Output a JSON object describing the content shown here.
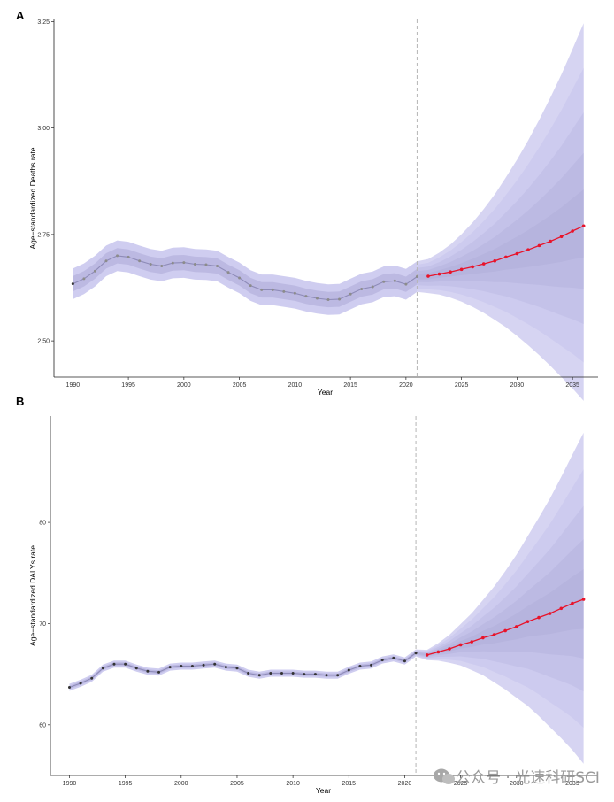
{
  "chart_data": [
    {
      "panel_label": "A",
      "type": "line",
      "xlabel": "Year",
      "ylabel": "Age−standardized Deaths rate",
      "xlim": [
        1988.3,
        2037.3
      ],
      "ylim": [
        2.415,
        3.255
      ],
      "xticks": [
        "1990",
        "1995",
        "2000",
        "2005",
        "2010",
        "2015",
        "2020",
        "2025",
        "2030",
        "2035"
      ],
      "yticks": [
        "2.50",
        "2.75",
        "3.00",
        "3.25"
      ],
      "cutoff_year": 2021,
      "observed": {
        "x": [
          1990,
          1991,
          1992,
          1993,
          1994,
          1995,
          1996,
          1997,
          1998,
          1999,
          2000,
          2001,
          2002,
          2003,
          2004,
          2005,
          2006,
          2007,
          2008,
          2009,
          2010,
          2011,
          2012,
          2013,
          2014,
          2015,
          2016,
          2017,
          2018,
          2019,
          2020,
          2021
        ],
        "y": [
          2.634,
          2.646,
          2.664,
          2.688,
          2.7,
          2.697,
          2.688,
          2.68,
          2.676,
          2.683,
          2.684,
          2.68,
          2.679,
          2.676,
          2.661,
          2.648,
          2.63,
          2.62,
          2.62,
          2.616,
          2.612,
          2.605,
          2.6,
          2.597,
          2.598,
          2.61,
          2.622,
          2.627,
          2.639,
          2.641,
          2.633,
          2.651
        ],
        "band_width": 0.036
      },
      "projection": {
        "x": [
          2022,
          2023,
          2024,
          2025,
          2026,
          2027,
          2028,
          2029,
          2030,
          2031,
          2032,
          2033,
          2034,
          2035,
          2036
        ],
        "y": [
          2.652,
          2.657,
          2.662,
          2.668,
          2.674,
          2.681,
          2.688,
          2.697,
          2.705,
          2.714,
          2.724,
          2.734,
          2.745,
          2.758,
          2.77
        ],
        "upper_outer_end": 3.21,
        "lower_outer_end": 2.395
      }
    },
    {
      "panel_label": "B",
      "type": "line",
      "xlabel": "Year",
      "ylabel": "Age−standardized DALYs rate",
      "xlim": [
        1988.3,
        2037.3
      ],
      "ylim": [
        55.0,
        90.5
      ],
      "xticks": [
        "1990",
        "1995",
        "2000",
        "2005",
        "2010",
        "2015",
        "2020",
        "2025",
        "2030",
        "2035"
      ],
      "yticks": [
        "60",
        "70",
        "80"
      ],
      "cutoff_year": 2021,
      "observed": {
        "x": [
          1990,
          1991,
          1992,
          1993,
          1994,
          1995,
          1996,
          1997,
          1998,
          1999,
          2000,
          2001,
          2002,
          2003,
          2004,
          2005,
          2006,
          2007,
          2008,
          2009,
          2010,
          2011,
          2012,
          2013,
          2014,
          2015,
          2016,
          2017,
          2018,
          2019,
          2020,
          2021
        ],
        "y": [
          63.7,
          64.1,
          64.6,
          65.6,
          66.0,
          66.0,
          65.6,
          65.3,
          65.2,
          65.7,
          65.8,
          65.8,
          65.9,
          66.0,
          65.7,
          65.6,
          65.1,
          64.9,
          65.1,
          65.1,
          65.1,
          65.0,
          65.0,
          64.9,
          64.9,
          65.4,
          65.8,
          65.9,
          66.4,
          66.6,
          66.3,
          67.1
        ],
        "band_width": 0.35
      },
      "projection": {
        "x": [
          2022,
          2023,
          2024,
          2025,
          2026,
          2027,
          2028,
          2029,
          2030,
          2031,
          2032,
          2033,
          2034,
          2035,
          2036
        ],
        "y": [
          66.9,
          67.2,
          67.5,
          67.9,
          68.2,
          68.6,
          68.9,
          69.3,
          69.7,
          70.2,
          70.6,
          71.0,
          71.5,
          72.0,
          72.4
        ],
        "upper_outer_end": 88.5,
        "lower_outer_end": 56.5
      }
    }
  ],
  "watermark": "公众号 · 光速科研SCI"
}
